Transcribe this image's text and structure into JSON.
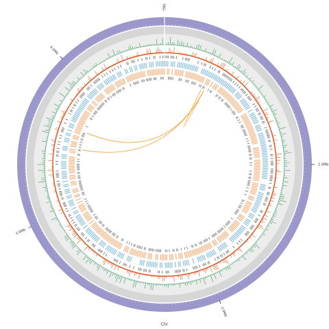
{
  "genome": {
    "chromosome_label": "Chr",
    "major_labels": [
      {
        "label": "0Mb",
        "angle_deg": 0
      },
      {
        "label": "1.0Mb",
        "angle_deg": 90
      },
      {
        "label": "2.0Mb",
        "angle_deg": 158
      },
      {
        "label": "3.0Mb",
        "angle_deg": 245
      },
      {
        "label": "4.0Mb",
        "angle_deg": 316
      }
    ]
  },
  "colors": {
    "ideogram": "#9b97cb",
    "gray_track": "#d6d6d6",
    "light_track": "#ececec",
    "green_track": "#2e9d5b",
    "red_track": "#e0541a",
    "black_ticks": "#333333",
    "blue_track": "#8fc3e0",
    "orange_track": "#f7b88a",
    "links": "#f0a638"
  },
  "links": [
    {
      "from_deg": 28,
      "to_deg": 292
    },
    {
      "from_deg": 28,
      "to_deg": 280
    },
    {
      "from_deg": 28,
      "to_deg": 26
    }
  ]
}
